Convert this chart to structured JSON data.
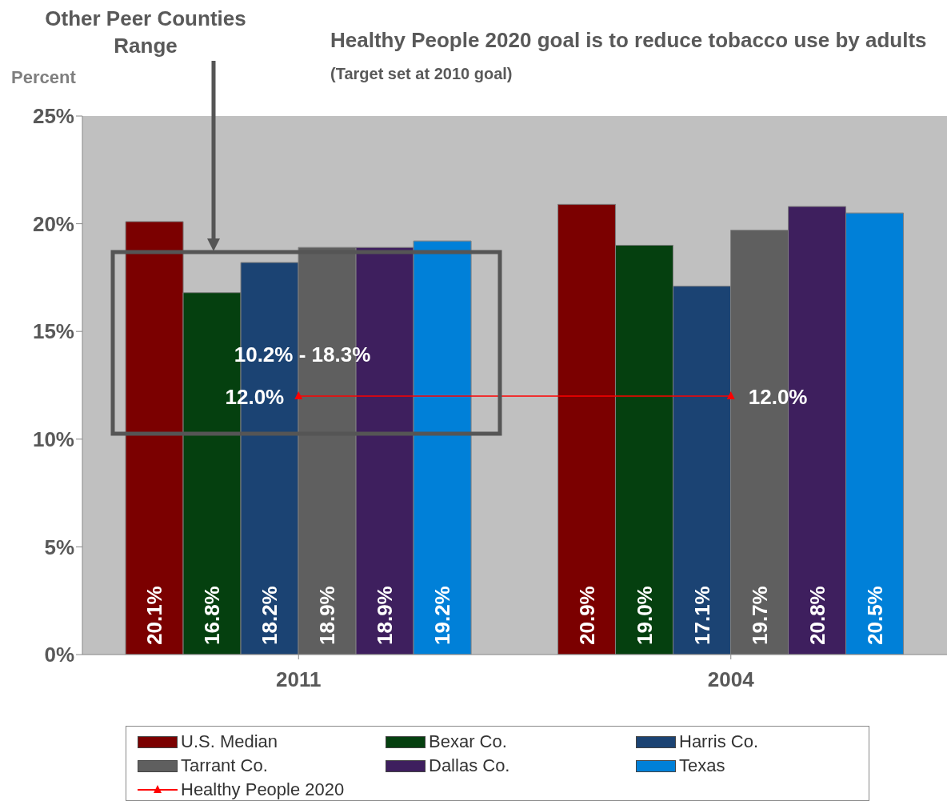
{
  "chart_data": {
    "type": "bar",
    "title": "Healthy People 2020 goal is to reduce tobacco use by adults",
    "subtitle": "(Target set at 2010 goal)",
    "ylabel": "Percent",
    "annotations": [
      "Other Peer Counties Range",
      "10.2% - 18.3%"
    ],
    "categories": [
      "2011",
      "2004"
    ],
    "series": [
      {
        "name": "U.S. Median",
        "color": "#7b0000",
        "values": [
          20.1,
          20.9
        ],
        "value_labels": [
          "20.1%",
          "20.9%"
        ]
      },
      {
        "name": "Bexar Co.",
        "color": "#05400f",
        "values": [
          16.8,
          19.0
        ],
        "value_labels": [
          "16.8%",
          "19.0%"
        ]
      },
      {
        "name": "Harris Co.",
        "color": "#1b4373",
        "values": [
          18.2,
          17.1
        ],
        "value_labels": [
          "18.2%",
          "17.1%"
        ]
      },
      {
        "name": "Tarrant Co.",
        "color": "#5f5f5f",
        "values": [
          18.9,
          19.7
        ],
        "value_labels": [
          "18.9%",
          "19.7%"
        ]
      },
      {
        "name": "Dallas Co.",
        "color": "#3e1f5e",
        "values": [
          18.9,
          20.8
        ],
        "value_labels": [
          "18.9%",
          "20.8%"
        ]
      },
      {
        "name": "Texas",
        "color": "#0080d8",
        "values": [
          19.2,
          20.5
        ],
        "value_labels": [
          "19.2%",
          "20.5%"
        ]
      },
      {
        "name": "Healthy People 2020",
        "type": "line",
        "color": "#ff0000",
        "marker": "triangle",
        "values": [
          12.0,
          12.0
        ],
        "value_labels": [
          "12.0%",
          "12.0%"
        ]
      }
    ],
    "ylim": [
      0,
      25
    ],
    "yticks": [
      {
        "value": 0,
        "label": "0%"
      },
      {
        "value": 5,
        "label": "5%"
      },
      {
        "value": 10,
        "label": "10%"
      },
      {
        "value": 15,
        "label": "15%"
      },
      {
        "value": 20,
        "label": "20%"
      },
      {
        "value": 25,
        "label": "25%"
      }
    ],
    "legend": "bottom"
  }
}
